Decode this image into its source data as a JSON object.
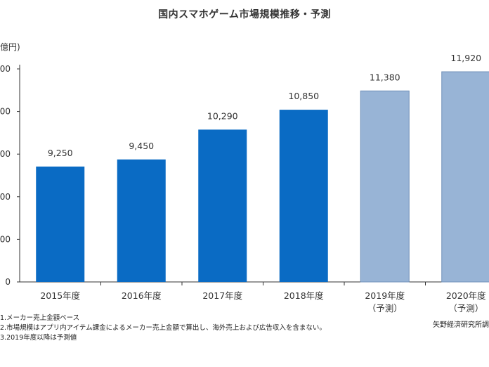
{
  "chart_data": {
    "type": "bar",
    "title": "国内スマホゲーム市場規模推移・予測",
    "unit_label": "億円)",
    "categories": [
      "2015年度",
      "2016年度",
      "2017年度",
      "2018年度",
      "2019年度",
      "2020年度"
    ],
    "category_sublabels": [
      "",
      "",
      "",
      "",
      "（予測）",
      "（予測）"
    ],
    "values": [
      9250,
      9450,
      10290,
      10850,
      11380,
      11920
    ],
    "value_labels": [
      "9,250",
      "9,450",
      "10,290",
      "10,850",
      "11,380",
      "11,920"
    ],
    "forecast": [
      false,
      false,
      false,
      false,
      true,
      true
    ],
    "ylim": [
      6000,
      12000
    ],
    "ytick_labels": [
      "0",
      "000",
      "000",
      "000",
      "000",
      "000"
    ],
    "colors": {
      "actual": "#0a6bc4",
      "forecast": "#98b4d6",
      "axis": "#333333"
    },
    "grid": false
  },
  "notes": [
    "1.メーカー売上金額ベース",
    "2.市場規模はアプリ内アイテム課金によるメーカー売上金額で算出し、海外売上および広告収入を含まない。",
    "3.2019年度以降は予測値"
  ],
  "source": "矢野経済研究所調"
}
